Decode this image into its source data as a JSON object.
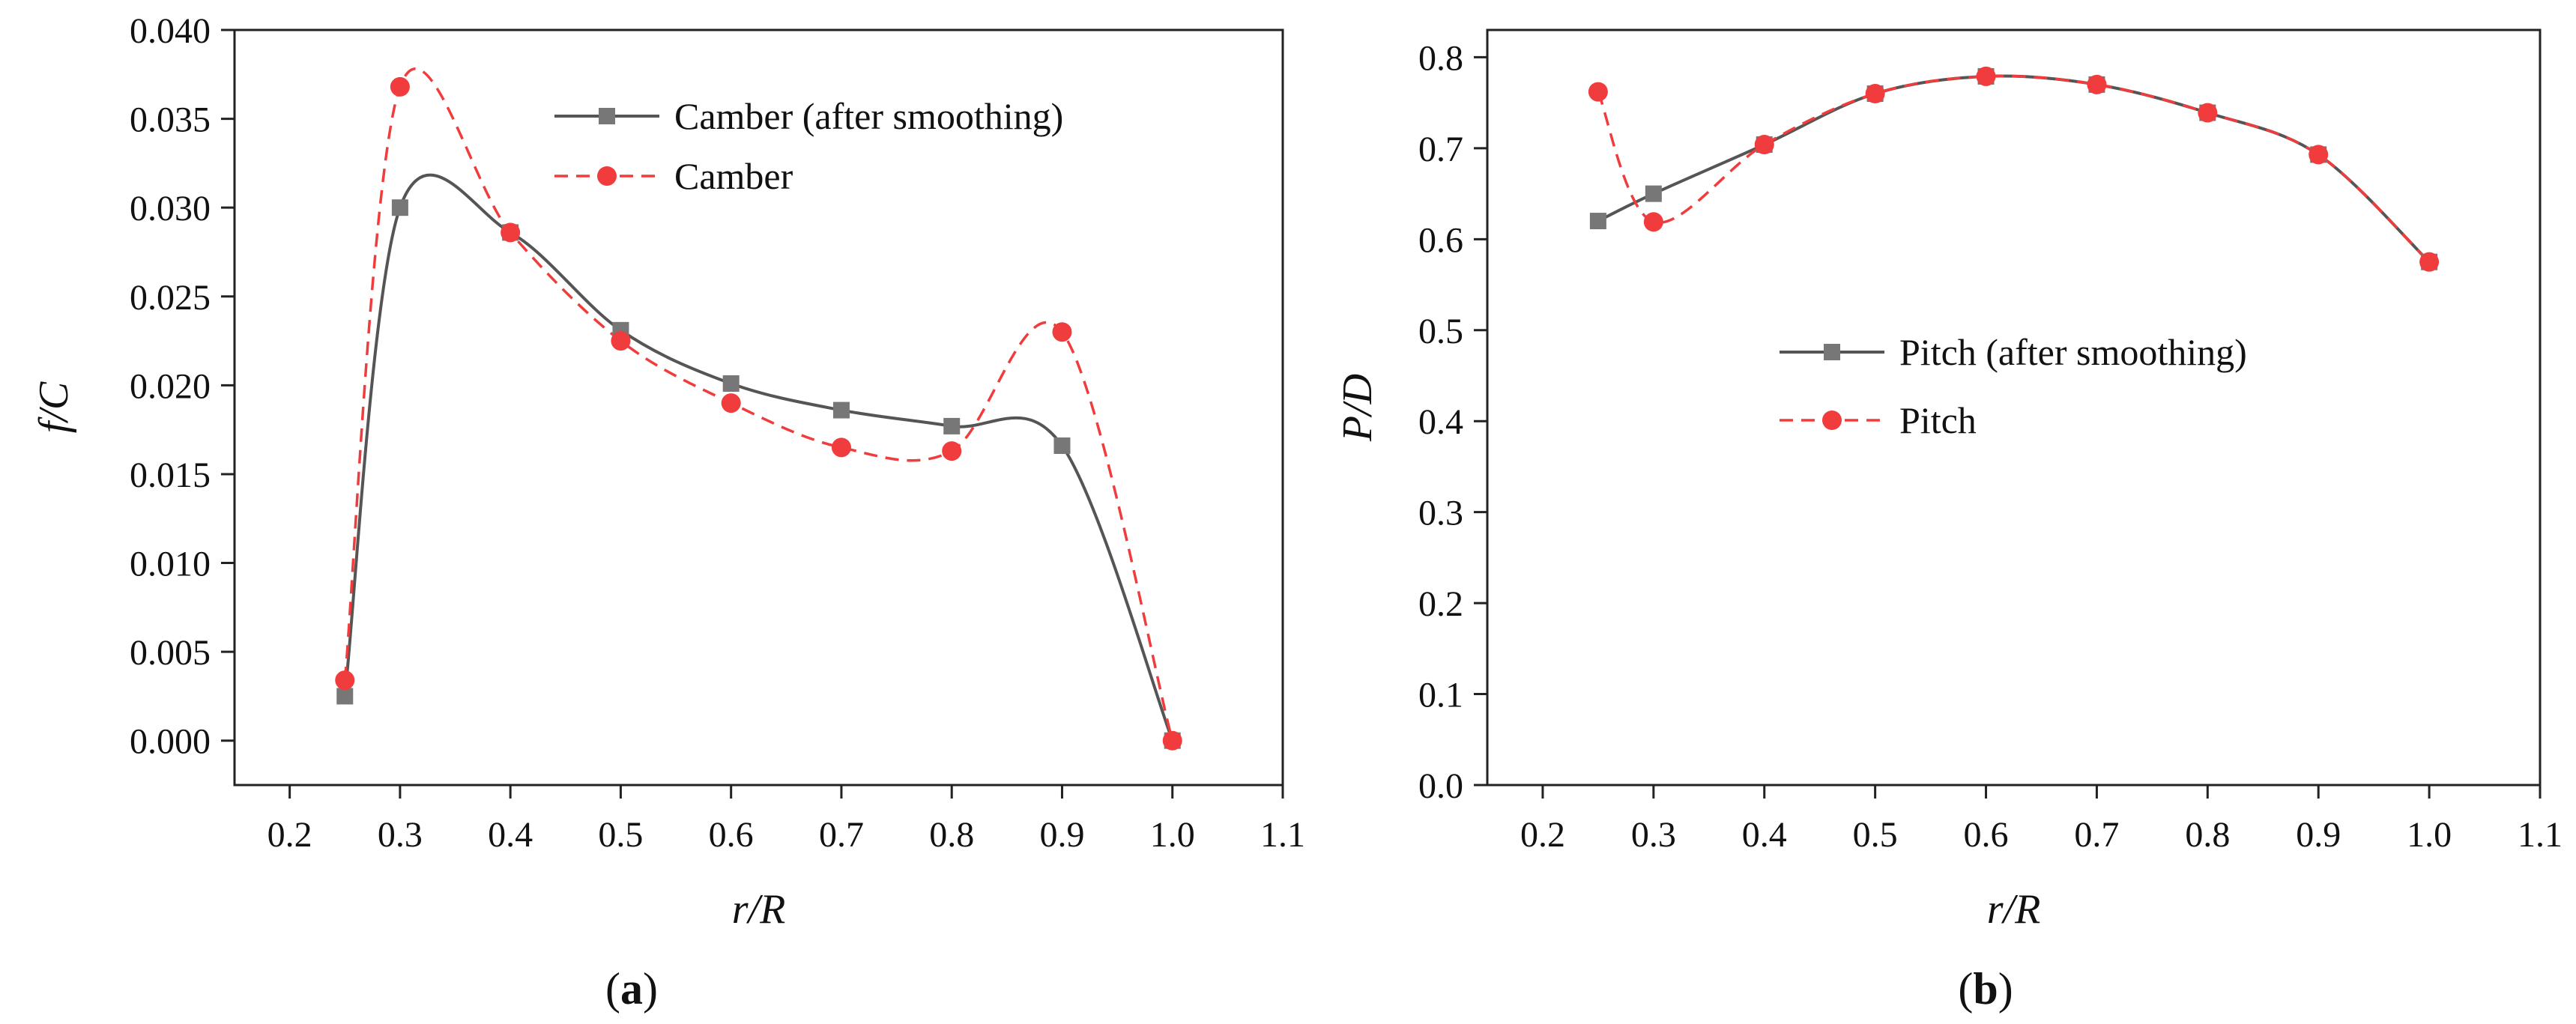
{
  "chart_data": [
    {
      "type": "line",
      "panel_label_open": "(",
      "panel_label_letter": "a",
      "panel_label_close": ")",
      "xlabel": "r/R",
      "ylabel": "f/C",
      "xlim": [
        0.15,
        1.1
      ],
      "ylim": [
        -0.0025,
        0.04
      ],
      "xticks": [
        0.2,
        0.3,
        0.4,
        0.5,
        0.6,
        0.7,
        0.8,
        0.9,
        1.0,
        1.1
      ],
      "xtick_labels": [
        "0.2",
        "0.3",
        "0.4",
        "0.5",
        "0.6",
        "0.7",
        "0.8",
        "0.9",
        "1.0",
        "1.1"
      ],
      "yticks": [
        0.0,
        0.005,
        0.01,
        0.015,
        0.02,
        0.025,
        0.03,
        0.035,
        0.04
      ],
      "ytick_labels": [
        "0.000",
        "0.005",
        "0.010",
        "0.015",
        "0.020",
        "0.025",
        "0.030",
        "0.035",
        "0.040"
      ],
      "legend_position": "top-right",
      "series": [
        {
          "name": "Camber (after smoothing)",
          "color": "#555555",
          "line_style": "solid",
          "marker": "square",
          "x": [
            0.25,
            0.3,
            0.4,
            0.5,
            0.6,
            0.7,
            0.8,
            0.9,
            1.0
          ],
          "y": [
            0.0025,
            0.03,
            0.0286,
            0.0231,
            0.0201,
            0.0186,
            0.0177,
            0.0166,
            0.0
          ]
        },
        {
          "name": "Camber",
          "color": "#f03c3c",
          "line_style": "dashed",
          "marker": "circle",
          "x": [
            0.25,
            0.3,
            0.4,
            0.5,
            0.6,
            0.7,
            0.8,
            0.9,
            1.0
          ],
          "y": [
            0.0034,
            0.0368,
            0.0286,
            0.0225,
            0.019,
            0.0165,
            0.0163,
            0.023,
            0.0
          ]
        }
      ]
    },
    {
      "type": "line",
      "panel_label_open": "(",
      "panel_label_letter": "b",
      "panel_label_close": ")",
      "xlabel": "r/R",
      "ylabel": "P/D",
      "xlim": [
        0.15,
        1.1
      ],
      "ylim": [
        0.0,
        0.83
      ],
      "xticks": [
        0.2,
        0.3,
        0.4,
        0.5,
        0.6,
        0.7,
        0.8,
        0.9,
        1.0,
        1.1
      ],
      "xtick_labels": [
        "0.2",
        "0.3",
        "0.4",
        "0.5",
        "0.6",
        "0.7",
        "0.8",
        "0.9",
        "1.0",
        "1.1"
      ],
      "yticks": [
        0.0,
        0.1,
        0.2,
        0.3,
        0.4,
        0.5,
        0.6,
        0.7,
        0.8
      ],
      "ytick_labels": [
        "0.0",
        "0.1",
        "0.2",
        "0.3",
        "0.4",
        "0.5",
        "0.6",
        "0.7",
        "0.8"
      ],
      "legend_position": "center-right",
      "series": [
        {
          "name": "Pitch (after smoothing)",
          "color": "#555555",
          "line_style": "solid",
          "marker": "square",
          "x": [
            0.25,
            0.3,
            0.4,
            0.5,
            0.6,
            0.7,
            0.8,
            0.9,
            1.0
          ],
          "y": [
            0.62,
            0.65,
            0.704,
            0.76,
            0.779,
            0.77,
            0.739,
            0.693,
            0.575
          ]
        },
        {
          "name": "Pitch",
          "color": "#f03c3c",
          "line_style": "dashed",
          "marker": "circle",
          "x": [
            0.25,
            0.3,
            0.4,
            0.5,
            0.6,
            0.7,
            0.8,
            0.9,
            1.0
          ],
          "y": [
            0.762,
            0.619,
            0.704,
            0.76,
            0.779,
            0.77,
            0.739,
            0.693,
            0.575
          ]
        }
      ]
    }
  ]
}
